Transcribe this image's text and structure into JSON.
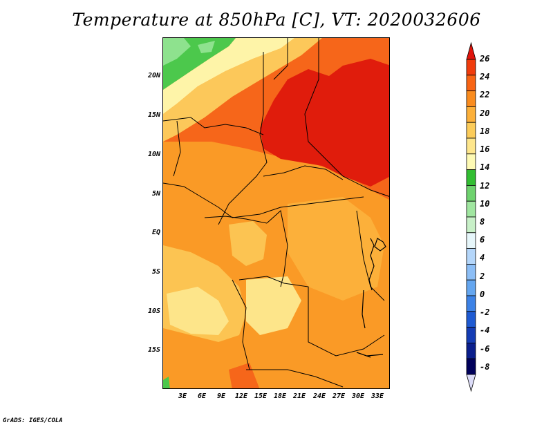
{
  "title": "Temperature at 850hPa [C], VT: 2020032606",
  "footer": "GrADS: IGES/COLA",
  "lat_labels": [
    "20N",
    "15N",
    "10N",
    "5N",
    "EQ",
    "5S",
    "10S",
    "15S"
  ],
  "lon_labels": [
    "3E",
    "6E",
    "9E",
    "12E",
    "15E",
    "18E",
    "21E",
    "24E",
    "27E",
    "30E",
    "33E"
  ],
  "colorbar": {
    "labels": [
      "26",
      "24",
      "22",
      "20",
      "18",
      "16",
      "14",
      "12",
      "10",
      "8",
      "6",
      "4",
      "2",
      "0",
      "-2",
      "-4",
      "-6",
      "-8"
    ],
    "colors": [
      "#e0140c",
      "#f03c0c",
      "#f86414",
      "#fa8c1e",
      "#fcb03a",
      "#fccc5a",
      "#fee68c",
      "#fefab4",
      "#32be32",
      "#6ed26e",
      "#a0e6a0",
      "#c8f0c8",
      "#e6f6fa",
      "#b4d6fa",
      "#8cbef6",
      "#64a6f0",
      "#3c82e6",
      "#1e5ad2",
      "#143cb4",
      "#0a1e8c",
      "#00005a",
      "#dcdcf8"
    ]
  }
}
